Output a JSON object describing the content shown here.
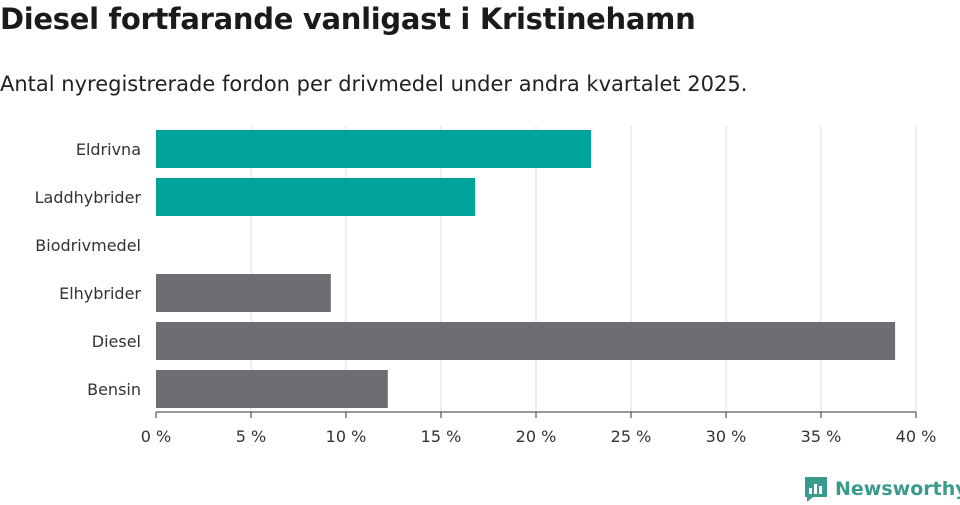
{
  "title": "Diesel fortfarande vanligast i Kristinehamn",
  "subtitle": "Antal nyregistrerade fordon per drivmedel under andra kvartalet 2025.",
  "brand": {
    "name": "Newsworthy",
    "icon": "newsworthy-logo-icon",
    "color": "#3a9a8c"
  },
  "chart_data": {
    "type": "bar",
    "orientation": "horizontal",
    "categories": [
      "Eldrivna",
      "Laddhybrider",
      "Biodrivmedel",
      "Elhybrider",
      "Diesel",
      "Bensin"
    ],
    "values": [
      22.9,
      16.8,
      0,
      9.2,
      38.9,
      12.2
    ],
    "colors": [
      "#00a49a",
      "#00a49a",
      "#00a49a",
      "#6e6d72",
      "#6e6d72",
      "#6e6d72"
    ],
    "xlim": [
      0,
      40
    ],
    "xticks": [
      0,
      5,
      10,
      15,
      20,
      25,
      30,
      35,
      40
    ],
    "tick_labels": [
      "0 %",
      "5 %",
      "10 %",
      "15 %",
      "20 %",
      "25 %",
      "30 %",
      "35 %",
      "40 %"
    ],
    "grid": true
  }
}
